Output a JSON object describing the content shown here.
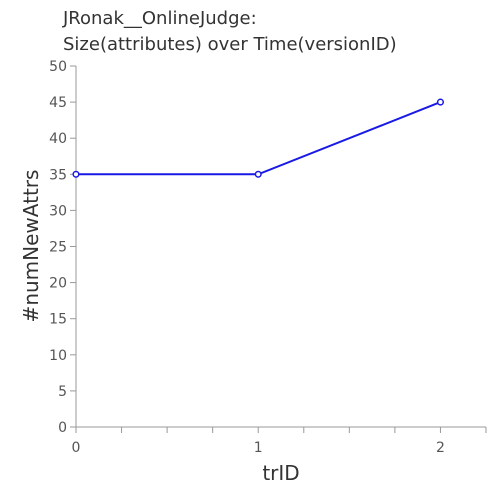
{
  "chart_data": {
    "type": "line",
    "title_lines": [
      "JRonak__OnlineJudge:",
      "Size(attributes) over Time(versionID)"
    ],
    "xlabel": "trID",
    "ylabel": "#numNewAttrs",
    "xlim": [
      0,
      2.25
    ],
    "ylim": [
      0,
      50
    ],
    "x_ticks": [
      0,
      1,
      2
    ],
    "y_ticks": [
      0,
      5,
      10,
      15,
      20,
      25,
      30,
      35,
      40,
      45,
      50
    ],
    "grid": false,
    "series": [
      {
        "x": [
          0,
          1,
          2
        ],
        "values": [
          35,
          35,
          45
        ],
        "color": "#1a1ae6"
      }
    ]
  }
}
